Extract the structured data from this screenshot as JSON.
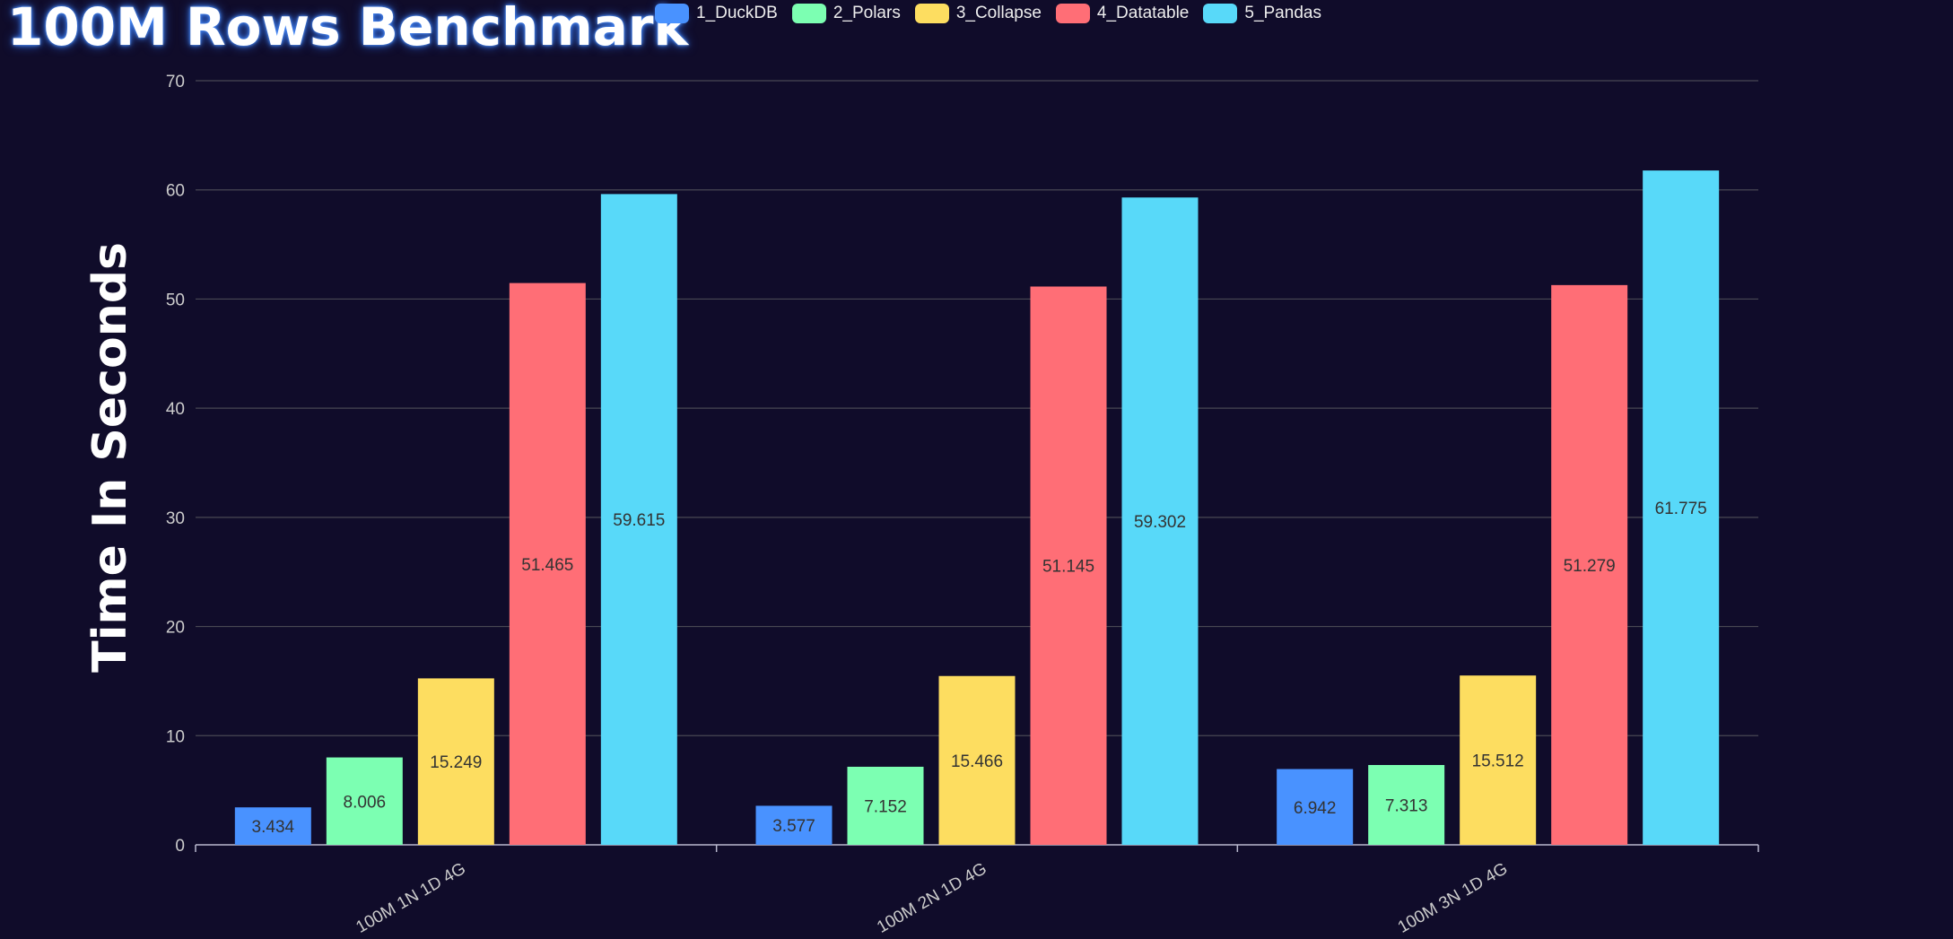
{
  "chart_data": {
    "type": "bar",
    "title": "100M Rows Benchmark",
    "ylabel": "Time In Seconds",
    "xlabel": "",
    "ylim": [
      0,
      70
    ],
    "yticks": [
      0,
      10,
      20,
      30,
      40,
      50,
      60,
      70
    ],
    "grid": true,
    "legend_position": "top",
    "categories": [
      "100M 1N 1D 4G",
      "100M 2N 1D 4G",
      "100M 3N 1D 4G"
    ],
    "series": [
      {
        "name": "1_DuckDB",
        "color": "#4992ff",
        "values": [
          3.434,
          3.577,
          6.942
        ]
      },
      {
        "name": "2_Polars",
        "color": "#7cffb2",
        "values": [
          8.006,
          7.152,
          7.313
        ]
      },
      {
        "name": "3_Collapse",
        "color": "#fddd60",
        "values": [
          15.249,
          15.466,
          15.512
        ]
      },
      {
        "name": "4_Datatable",
        "color": "#ff6e76",
        "values": [
          51.465,
          51.145,
          51.279
        ]
      },
      {
        "name": "5_Pandas",
        "color": "#58d9f9",
        "values": [
          59.615,
          59.302,
          61.775
        ]
      }
    ],
    "data_labels_shown": [
      [
        true,
        true,
        true
      ],
      [
        true,
        true,
        true
      ],
      [
        true,
        true,
        true
      ],
      [
        true,
        true,
        true
      ],
      [
        true,
        true,
        true
      ]
    ],
    "pandas_label_hidden_index": 2
  }
}
